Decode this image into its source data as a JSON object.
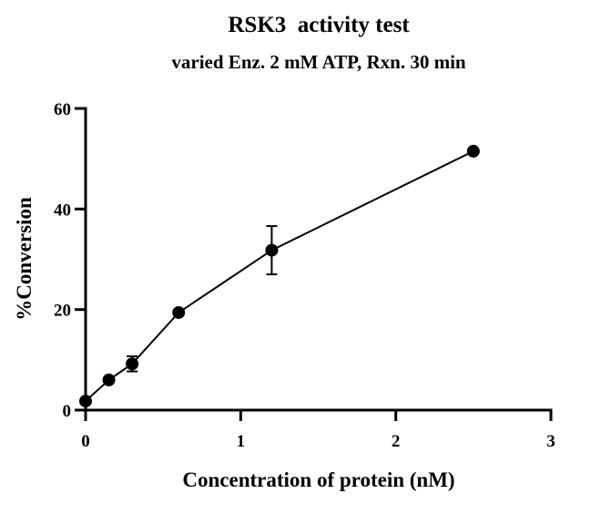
{
  "chart_data": {
    "type": "scatter",
    "title": "RSK3  activity test",
    "subtitle": "varied Enz. 2 mM ATP, Rxn. 30 min",
    "xlabel": "Concentration of protein (nM)",
    "ylabel": "%Conversion",
    "xlim": [
      0,
      3
    ],
    "ylim": [
      0,
      60
    ],
    "xticks": [
      0,
      1,
      2,
      3
    ],
    "yticks": [
      0,
      20,
      40,
      60
    ],
    "grid": false,
    "series": [
      {
        "x": [
          0,
          0.15,
          0.3,
          0.6,
          1.2,
          2.5
        ],
        "y": [
          1.8,
          6.0,
          9.2,
          19.4,
          31.8,
          51.5
        ],
        "error": [
          0,
          0,
          1.5,
          0,
          4.8,
          0
        ]
      }
    ]
  }
}
